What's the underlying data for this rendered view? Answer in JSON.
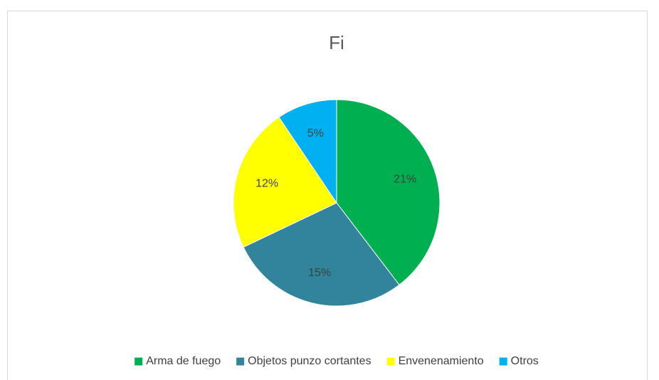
{
  "chart_data": {
    "type": "pie",
    "title": "Fi",
    "categories": [
      "Arma de fuego",
      "Objetos punzo cortantes",
      "Envenenamiento",
      "Otros"
    ],
    "values": [
      21,
      15,
      12,
      5
    ],
    "value_labels": [
      "21%",
      "15%",
      "12%",
      "5%"
    ],
    "colors": [
      "#00b050",
      "#31849b",
      "#ffff00",
      "#00b0f0"
    ],
    "legend": "bottom"
  }
}
